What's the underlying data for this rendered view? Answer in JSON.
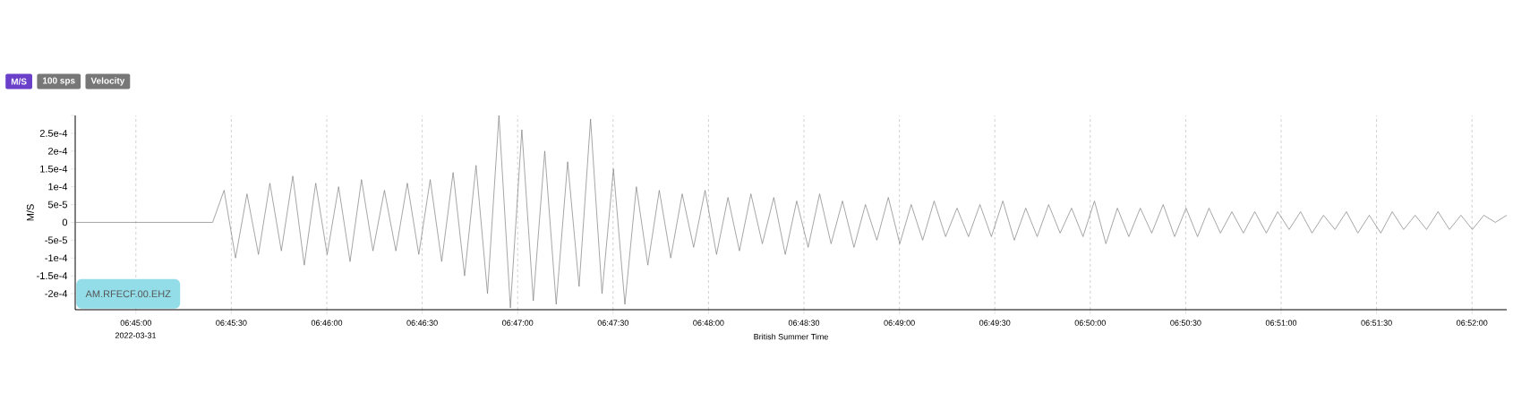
{
  "chart_data": {
    "type": "line",
    "xlabel": "British Summer Time",
    "ylabel": "M/S",
    "annotations": [
      "M/S",
      "100 sps",
      "Velocity",
      "AM.RFECF.00.EHZ",
      "2022-03-31"
    ],
    "x": [
      6.7447,
      6.7457,
      6.7467,
      6.7477,
      6.7487,
      6.7497,
      6.7507,
      6.7517,
      6.7527,
      6.7537,
      6.7547,
      6.7557,
      6.7567,
      6.7577,
      6.7587,
      6.7597,
      6.7607,
      6.7617,
      6.7627,
      6.7637,
      6.7647,
      6.7657,
      6.7667,
      6.7677,
      6.7687,
      6.7697,
      6.7707,
      6.7717,
      6.7727,
      6.7737,
      6.7747,
      6.7757,
      6.7767,
      6.7777,
      6.7787,
      6.7797,
      6.7807,
      6.7817,
      6.7827,
      6.7837,
      6.7847,
      6.7857,
      6.7867,
      6.7877,
      6.7887,
      6.7897,
      6.7907,
      6.7917,
      6.7927,
      6.7937,
      6.7947,
      6.7957,
      6.7967,
      6.7977,
      6.7987,
      6.7997,
      6.8007,
      6.8017,
      6.8027,
      6.8037,
      6.8047,
      6.8057,
      6.8067,
      6.8077,
      6.8087,
      6.8097,
      6.8107,
      6.8117,
      6.8127,
      6.8137,
      6.8147,
      6.8157,
      6.8167,
      6.8177,
      6.8187,
      6.8197,
      6.8207,
      6.8217,
      6.8227,
      6.8237,
      6.8247,
      6.8257,
      6.8267,
      6.8277,
      6.8287,
      6.8297,
      6.8307,
      6.8317,
      6.8327,
      6.8337,
      6.8347,
      6.8357,
      6.8367,
      6.8377,
      6.8387,
      6.8397,
      6.8407,
      6.8417,
      6.8427,
      6.8437,
      6.8447,
      6.8457,
      6.8467,
      6.8477,
      6.8487,
      6.8497,
      6.8507,
      6.8517,
      6.8527,
      6.8537,
      6.8547,
      6.8557,
      6.8567,
      6.8577,
      6.8587,
      6.8597,
      6.8607,
      6.8617,
      6.8627,
      6.8637,
      6.8647,
      6.8657,
      6.8667,
      6.8677,
      6.8687,
      6.8697
    ],
    "series": [
      {
        "color": "#808080",
        "values": [
          0,
          0,
          0,
          0,
          0,
          0,
          0,
          0,
          0,
          0,
          0,
          0,
          0,
          9e-05,
          -0.0001,
          8e-05,
          -9e-05,
          0.00011,
          -8e-05,
          0.00013,
          -0.00012,
          0.00011,
          -9e-05,
          0.0001,
          -0.00011,
          0.00012,
          -8e-05,
          9e-05,
          -8e-05,
          0.00011,
          -9e-05,
          0.00012,
          -0.00011,
          0.00014,
          -0.00015,
          0.00016,
          -0.0002,
          0.0003,
          -0.00024,
          0.00026,
          -0.00022,
          0.0002,
          -0.00023,
          0.00017,
          -0.00018,
          0.00029,
          -0.0002,
          0.00015,
          -0.00023,
          0.0001,
          -0.00012,
          9e-05,
          -0.0001,
          8e-05,
          -7e-05,
          9e-05,
          -9e-05,
          7e-05,
          -8e-05,
          8e-05,
          -6e-05,
          7e-05,
          -9e-05,
          6e-05,
          -7e-05,
          8e-05,
          -6e-05,
          6e-05,
          -7e-05,
          5e-05,
          -5e-05,
          7e-05,
          -6e-05,
          5e-05,
          -5e-05,
          6e-05,
          -4e-05,
          4e-05,
          -4e-05,
          5e-05,
          -4e-05,
          6e-05,
          -5e-05,
          4e-05,
          -4e-05,
          5e-05,
          -3e-05,
          4e-05,
          -4e-05,
          6e-05,
          -6e-05,
          4e-05,
          -4e-05,
          4e-05,
          -3e-05,
          5e-05,
          -4e-05,
          4e-05,
          -4e-05,
          4e-05,
          -3e-05,
          3e-05,
          -3e-05,
          3e-05,
          -3e-05,
          3e-05,
          -2e-05,
          3e-05,
          -3e-05,
          2e-05,
          -2e-05,
          3e-05,
          -3e-05,
          2e-05,
          -3e-05,
          3e-05,
          -2e-05,
          2e-05,
          -2e-05,
          3e-05,
          -2e-05,
          2e-05,
          -2e-05,
          2e-05,
          0,
          2e-05
        ]
      }
    ],
    "xlim": [
      6.7447,
      6.8697
    ],
    "xticks": [
      {
        "value": 6.75,
        "label": "06:45:00"
      },
      {
        "value": 6.758333,
        "label": "06:45:30"
      },
      {
        "value": 6.766667,
        "label": "06:46:00"
      },
      {
        "value": 6.775,
        "label": "06:46:30"
      },
      {
        "value": 6.783333,
        "label": "06:47:00"
      },
      {
        "value": 6.791667,
        "label": "06:47:30"
      },
      {
        "value": 6.8,
        "label": "06:48:00"
      },
      {
        "value": 6.808333,
        "label": "06:48:30"
      },
      {
        "value": 6.816667,
        "label": "06:49:00"
      },
      {
        "value": 6.825,
        "label": "06:49:30"
      },
      {
        "value": 6.833333,
        "label": "06:50:00"
      },
      {
        "value": 6.841667,
        "label": "06:50:30"
      },
      {
        "value": 6.85,
        "label": "06:51:00"
      },
      {
        "value": 6.858333,
        "label": "06:51:30"
      },
      {
        "value": 6.866667,
        "label": "06:52:00"
      }
    ],
    "ylim": [
      -0.000245,
      0.0003
    ],
    "yticks": [
      {
        "value": -0.0002,
        "label": "-2e-4"
      },
      {
        "value": -0.00015,
        "label": "-1.5e-4"
      },
      {
        "value": -0.0001,
        "label": "-1e-4"
      },
      {
        "value": -5e-05,
        "label": "-5e-5"
      },
      {
        "value": 0,
        "label": "0"
      },
      {
        "value": 5e-05,
        "label": "5e-5"
      },
      {
        "value": 0.0001,
        "label": "1e-4"
      },
      {
        "value": 0.00015,
        "label": "1.5e-4"
      },
      {
        "value": 0.0002,
        "label": "2e-4"
      },
      {
        "value": 0.00025,
        "label": "2.5e-4"
      },
      {
        "value": 0.0003,
        "label": null
      }
    ],
    "grid": "x"
  }
}
